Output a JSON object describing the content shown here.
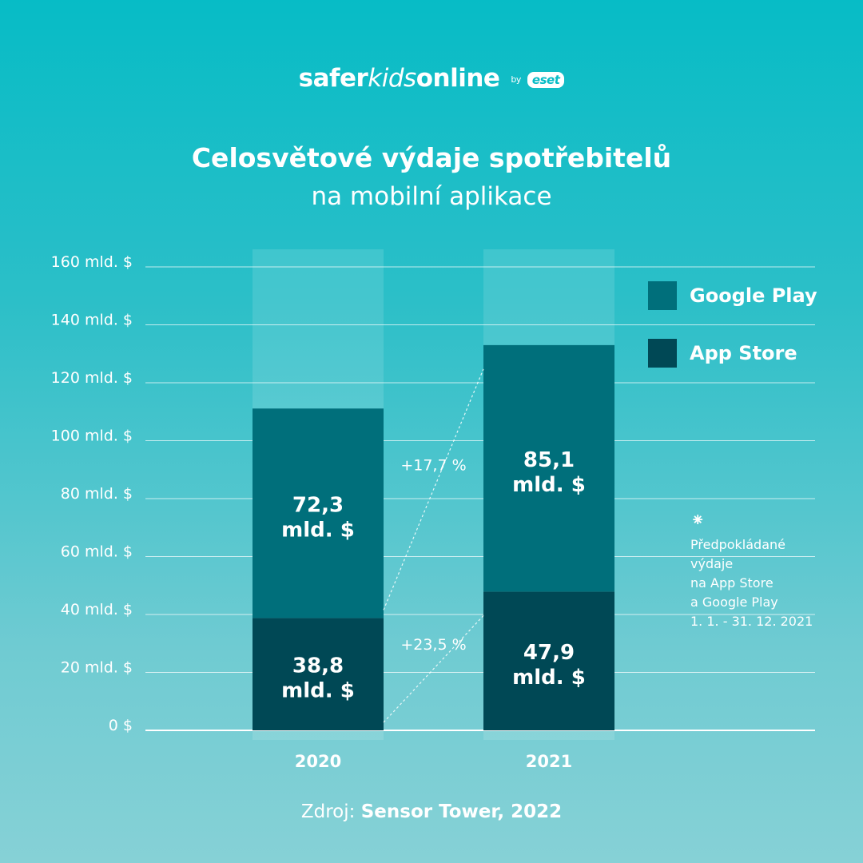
{
  "brand": {
    "part1": "safer",
    "part2": "kids",
    "part3": "online",
    "by": "by",
    "eset": "eset"
  },
  "legend": [
    {
      "label": "Google Play",
      "color": "#006f7b"
    },
    {
      "label": "App Store",
      "color": "#004855"
    }
  ],
  "note": {
    "icon": "asterisk-icon",
    "lines": [
      "Předpokládané",
      "výdaje",
      "na App Store",
      "a Google Play",
      "1. 1. - 31. 12. 2021"
    ]
  },
  "source": {
    "label": "Zdroj:",
    "value": "Sensor Tower, 2022"
  },
  "chart_data": {
    "type": "bar",
    "stacked": true,
    "title": "Celosvětové výdaje spotřebitelů",
    "subtitle": "na mobilní aplikace",
    "categories": [
      "2020",
      "2021"
    ],
    "series": [
      {
        "name": "App Store",
        "values": [
          38.8,
          47.9
        ],
        "labels": [
          "38,8\nmld. $",
          "47,9\nmld. $"
        ],
        "color": "#004855"
      },
      {
        "name": "Google Play",
        "values": [
          72.3,
          85.1
        ],
        "labels": [
          "72,3\nmld. $",
          "85,1\nmld. $"
        ],
        "color": "#006f7b"
      }
    ],
    "ylim": [
      0,
      160
    ],
    "yticks": [
      0,
      20,
      40,
      60,
      80,
      100,
      120,
      140,
      160
    ],
    "ytick_labels": [
      "0 $",
      "20 mld. $",
      "40 mld. $",
      "60 mld. $",
      "80  mld. $",
      "100 mld. $",
      "120 mld. $",
      "140 mld. $",
      "160 mld. $"
    ],
    "growth": [
      {
        "series": "Google Play",
        "label": "+17,7 %"
      },
      {
        "series": "App Store",
        "label": "+23,5 %"
      }
    ],
    "grid": true,
    "legend_position": "top-right"
  }
}
